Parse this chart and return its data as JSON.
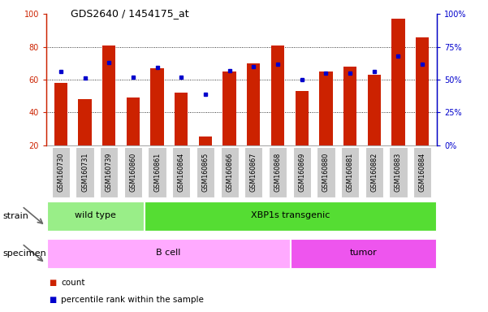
{
  "title": "GDS2640 / 1454175_at",
  "samples": [
    "GSM160730",
    "GSM160731",
    "GSM160739",
    "GSM160860",
    "GSM160861",
    "GSM160864",
    "GSM160865",
    "GSM160866",
    "GSM160867",
    "GSM160868",
    "GSM160869",
    "GSM160880",
    "GSM160881",
    "GSM160882",
    "GSM160883",
    "GSM160884"
  ],
  "count_values": [
    58,
    48,
    81,
    49,
    67,
    52,
    25,
    65,
    70,
    81,
    53,
    65,
    68,
    63,
    97,
    86
  ],
  "percentile_values": [
    56,
    51,
    63,
    52,
    59,
    52,
    39,
    57,
    60,
    62,
    50,
    55,
    55,
    56,
    68,
    62
  ],
  "ymin": 20,
  "ymax": 100,
  "yticks_left": [
    20,
    40,
    60,
    80,
    100
  ],
  "yticks_right": [
    0,
    25,
    50,
    75,
    100
  ],
  "bar_color": "#cc2200",
  "dot_color": "#0000cc",
  "strain_groups": [
    {
      "label": "wild type",
      "start": 0,
      "end": 4,
      "color": "#99ee88"
    },
    {
      "label": "XBP1s transgenic",
      "start": 4,
      "end": 16,
      "color": "#55dd33"
    }
  ],
  "specimen_groups": [
    {
      "label": "B cell",
      "start": 0,
      "end": 10,
      "color": "#ffaaff"
    },
    {
      "label": "tumor",
      "start": 10,
      "end": 16,
      "color": "#ee55ee"
    }
  ],
  "bg_color": "#ffffff",
  "tick_label_bg": "#cccccc",
  "left_axis_color": "#cc2200",
  "right_axis_color": "#0000cc"
}
